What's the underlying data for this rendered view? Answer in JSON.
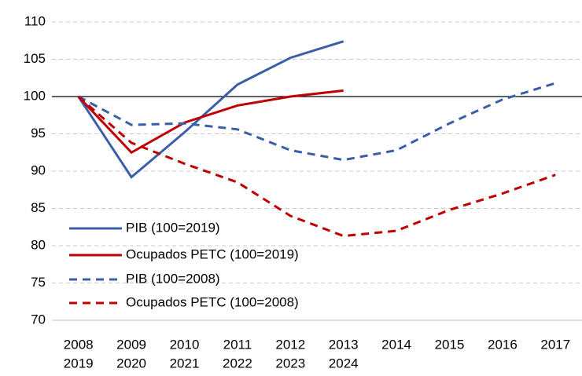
{
  "chart_data": {
    "type": "line",
    "categories": [
      "2008",
      "2009",
      "2010",
      "2011",
      "2012",
      "2013",
      "2014",
      "2015",
      "2016",
      "2017"
    ],
    "secondary_categories": [
      "2019",
      "2020",
      "2021",
      "2022",
      "2023",
      "2024",
      null,
      null,
      null,
      null
    ],
    "series": [
      {
        "name": "PIB (100=2019)",
        "color": "#3a5fa8",
        "dash": false,
        "values": [
          100,
          89.2,
          95.2,
          101.6,
          105.2,
          107.4,
          null,
          null,
          null,
          null
        ]
      },
      {
        "name": "Ocupados PETC (100=2019)",
        "color": "#c00000",
        "dash": false,
        "values": [
          100,
          92.5,
          96.5,
          98.8,
          100,
          100.8,
          null,
          null,
          null,
          null
        ]
      },
      {
        "name": "PIB (100=2008)",
        "color": "#3a5fa8",
        "dash": true,
        "values": [
          100,
          96.2,
          96.4,
          95.6,
          92.8,
          91.5,
          92.8,
          96.4,
          99.6,
          101.8
        ]
      },
      {
        "name": "Ocupados PETC (100=2008)",
        "color": "#c00000",
        "dash": true,
        "values": [
          100,
          93.8,
          91.0,
          88.5,
          84.0,
          81.3,
          82.0,
          84.8,
          87.0,
          89.5
        ]
      }
    ],
    "reference_line": 100,
    "ylim": [
      70,
      110
    ],
    "yticks": [
      70,
      75,
      80,
      85,
      90,
      95,
      100,
      105,
      110
    ],
    "grid": true,
    "legend": "lower left"
  }
}
